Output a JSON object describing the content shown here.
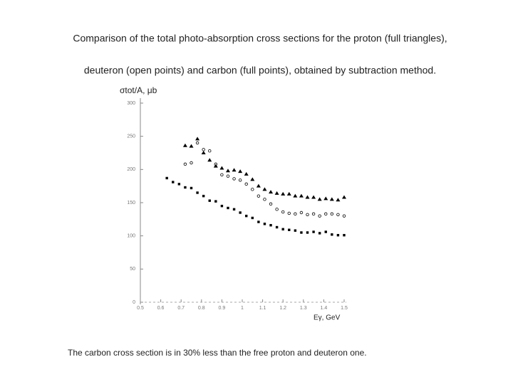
{
  "header": {
    "lines": [
      "Comparison of the total photo-absorption cross sections for the proton (full triangles),",
      "deuteron (open points)  and carbon (full points), obtained by subtraction method."
    ]
  },
  "chart_data": {
    "type": "scatter",
    "ylabel": "σtot/A, μb",
    "xlabel": "Eγ, GeV",
    "xlim": [
      0.5,
      1.5
    ],
    "xticks": [
      0.5,
      0.6,
      0.7,
      0.8,
      0.9,
      1,
      1.1,
      1.2,
      1.3,
      1.4,
      1.5
    ],
    "ylim": [
      0,
      300
    ],
    "yticks": [
      0,
      50,
      100,
      150,
      200,
      250,
      300
    ],
    "series": [
      {
        "marker": "triangle",
        "color": "#000000",
        "x": [
          0.72,
          0.75,
          0.78,
          0.81,
          0.84,
          0.87,
          0.9,
          0.93,
          0.96,
          0.99,
          1.02,
          1.05,
          1.08,
          1.11,
          1.14,
          1.17,
          1.2,
          1.23,
          1.26,
          1.29,
          1.32,
          1.35,
          1.38,
          1.41,
          1.44,
          1.47,
          1.5
        ],
        "values": [
          236,
          235,
          246,
          225,
          214,
          205,
          202,
          198,
          199,
          197,
          193,
          185,
          175,
          170,
          166,
          164,
          163,
          163,
          160,
          160,
          158,
          158,
          155,
          156,
          155,
          154,
          158
        ]
      },
      {
        "marker": "open-circle",
        "color": "#000000",
        "x": [
          0.72,
          0.75,
          0.78,
          0.81,
          0.84,
          0.87,
          0.9,
          0.93,
          0.96,
          0.99,
          1.02,
          1.05,
          1.08,
          1.11,
          1.14,
          1.17,
          1.2,
          1.23,
          1.26,
          1.29,
          1.32,
          1.35,
          1.38,
          1.41,
          1.44,
          1.47,
          1.5
        ],
        "values": [
          208,
          210,
          240,
          230,
          228,
          208,
          192,
          190,
          186,
          184,
          178,
          170,
          160,
          155,
          148,
          140,
          136,
          134,
          133,
          135,
          132,
          133,
          130,
          133,
          133,
          132,
          130
        ]
      },
      {
        "marker": "square",
        "color": "#000000",
        "x": [
          0.63,
          0.66,
          0.69,
          0.72,
          0.75,
          0.78,
          0.81,
          0.84,
          0.87,
          0.9,
          0.93,
          0.96,
          0.99,
          1.02,
          1.05,
          1.08,
          1.11,
          1.14,
          1.17,
          1.2,
          1.23,
          1.26,
          1.29,
          1.32,
          1.35,
          1.38,
          1.41,
          1.44,
          1.47,
          1.5
        ],
        "values": [
          187,
          181,
          178,
          173,
          172,
          165,
          160,
          153,
          152,
          145,
          142,
          140,
          135,
          130,
          127,
          121,
          118,
          116,
          113,
          110,
          109,
          108,
          105,
          105,
          106,
          104,
          106,
          102,
          101,
          101
        ]
      }
    ]
  },
  "footer": {
    "text": "The carbon cross section is in 30% less than the free proton and deuteron one."
  }
}
